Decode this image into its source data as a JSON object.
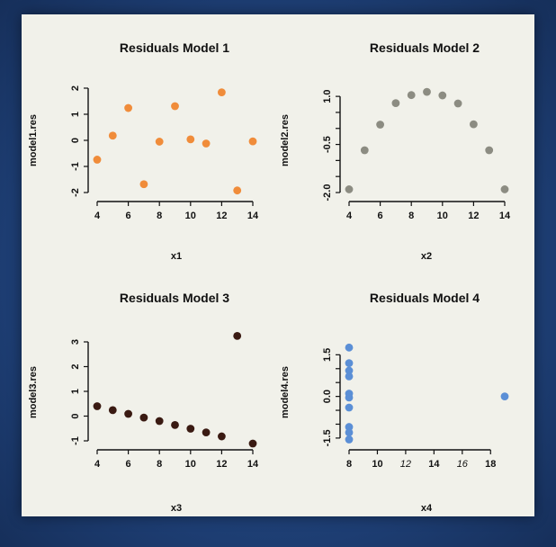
{
  "chart_data": [
    {
      "type": "scatter",
      "title": "Residuals Model 1",
      "xlabel": "x1",
      "ylabel": "model1.res",
      "xlim": [
        4,
        14
      ],
      "ylim": [
        -2,
        2
      ],
      "xticks": [
        4,
        6,
        8,
        10,
        12,
        14
      ],
      "yticks": [
        -2,
        -1,
        0,
        1,
        2
      ],
      "color": "#f08c3a",
      "x": [
        4,
        5,
        6,
        7,
        8,
        9,
        10,
        11,
        12,
        13,
        14
      ],
      "y": [
        -0.74,
        0.18,
        1.24,
        -1.68,
        -0.05,
        1.31,
        0.04,
        -0.12,
        1.84,
        -1.92,
        -0.04
      ]
    },
    {
      "type": "scatter",
      "title": "Residuals Model 2",
      "xlabel": "x2",
      "ylabel": "model2.res",
      "xlim": [
        4,
        14
      ],
      "ylim": [
        -2,
        1.2
      ],
      "xticks": [
        4,
        6,
        8,
        10,
        12,
        14
      ],
      "yticks": [
        -2.0,
        -0.5,
        1.0
      ],
      "yticklabels": [
        "-2.0",
        "-0.5",
        "1.0"
      ],
      "ytickmarks": [
        -2.0,
        -1.5,
        -1.0,
        -0.5,
        0.0,
        0.5,
        1.0
      ],
      "color": "#8c8c82",
      "x": [
        4,
        5,
        6,
        7,
        8,
        9,
        10,
        11,
        12,
        13,
        14
      ],
      "y": [
        -1.9,
        -0.68,
        0.12,
        0.79,
        1.04,
        1.14,
        1.03,
        0.78,
        0.13,
        -0.68,
        -1.9
      ]
    },
    {
      "type": "scatter",
      "title": "Residuals Model 3",
      "xlabel": "x3",
      "ylabel": "model3.res",
      "xlim": [
        4,
        14
      ],
      "ylim": [
        -1,
        3
      ],
      "xticks": [
        4,
        6,
        8,
        10,
        12,
        14
      ],
      "yticks": [
        -1,
        0,
        1,
        2,
        3
      ],
      "color": "#3a1a12",
      "x": [
        4,
        5,
        6,
        7,
        8,
        9,
        10,
        11,
        12,
        13,
        14
      ],
      "y": [
        0.4,
        0.24,
        0.09,
        -0.06,
        -0.2,
        -0.36,
        -0.51,
        -0.66,
        -0.82,
        3.24,
        -1.11
      ]
    },
    {
      "type": "scatter",
      "title": "Residuals Model 4",
      "xlabel": "x4",
      "ylabel": "model4.res",
      "xlim": [
        8,
        19
      ],
      "ylim": [
        -1.6,
        1.9
      ],
      "xticks": [
        8,
        10,
        12,
        14,
        16,
        18
      ],
      "xtick_italic": [
        12,
        16
      ],
      "yticks": [
        -1.5,
        0.0,
        1.5
      ],
      "yticklabels": [
        "-1.5",
        "0.0",
        "1.5"
      ],
      "ytickmarks": [
        -1.5,
        -1.0,
        -0.5,
        0.0,
        0.5,
        1.0,
        1.5
      ],
      "color": "#5b8fd6",
      "x": [
        8,
        8,
        8,
        8,
        8,
        8,
        8,
        8,
        8,
        8,
        19
      ],
      "y": [
        1.76,
        1.2,
        0.93,
        0.72,
        0.1,
        -0.04,
        -0.4,
        -1.1,
        -1.3,
        -1.55,
        0.0
      ]
    }
  ]
}
